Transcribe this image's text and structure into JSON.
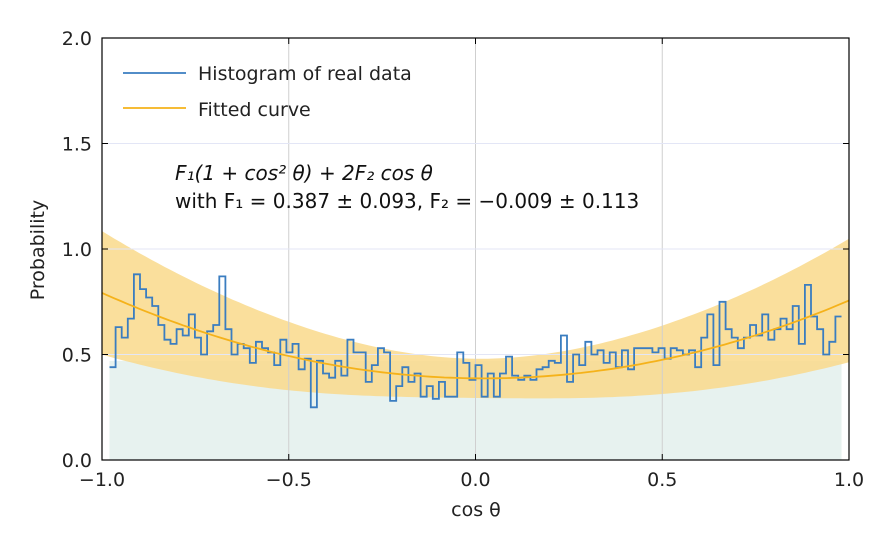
{
  "chart_data": {
    "type": "line",
    "title": "",
    "xlabel": "cos θ",
    "ylabel": "Probability",
    "xlim": [
      -1.0,
      1.0
    ],
    "ylim": [
      0.0,
      2.0
    ],
    "x_tick_labels": [
      "−1.0",
      "−0.5",
      "0.0",
      "0.5",
      "1.0"
    ],
    "y_tick_labels": [
      "0.0",
      "0.5",
      "1.0",
      "1.5",
      "2.0"
    ],
    "x_ticks": [
      -1.0,
      -0.5,
      0.0,
      0.5,
      1.0
    ],
    "y_ticks": [
      0.0,
      0.5,
      1.0,
      1.5,
      2.0
    ],
    "grid": true,
    "legend_position": "top-left",
    "colors": {
      "histogram": "#3a7dc0",
      "fit": "#f5b21a",
      "band": "#f9d98b",
      "mc_fill": "#e7f2ef",
      "grid_vertical": "#cfcfcf",
      "grid_horizontal": "#e3e6f6"
    },
    "annotation": {
      "line1": "F₁(1 + cos² θ) + 2F₂ cos θ",
      "line2": "with F₁ = 0.387 ± 0.093, F₂ = −0.009 ± 0.113"
    },
    "fit_params": {
      "F1": 0.387,
      "F1_err": 0.093,
      "F2": -0.009,
      "F2_err": 0.113
    },
    "series": [
      {
        "name": "Histogram of real data",
        "kind": "step",
        "bin_edges_range": [
          -0.98,
          0.98
        ],
        "values": [
          0.44,
          0.63,
          0.58,
          0.67,
          0.88,
          0.81,
          0.77,
          0.73,
          0.64,
          0.57,
          0.55,
          0.62,
          0.59,
          0.69,
          0.58,
          0.5,
          0.61,
          0.64,
          0.87,
          0.62,
          0.5,
          0.55,
          0.53,
          0.46,
          0.56,
          0.53,
          0.51,
          0.45,
          0.57,
          0.51,
          0.55,
          0.43,
          0.48,
          0.25,
          0.47,
          0.41,
          0.39,
          0.47,
          0.4,
          0.57,
          0.51,
          0.51,
          0.37,
          0.45,
          0.53,
          0.51,
          0.28,
          0.35,
          0.44,
          0.37,
          0.41,
          0.3,
          0.35,
          0.29,
          0.37,
          0.3,
          0.3,
          0.51,
          0.46,
          0.38,
          0.45,
          0.3,
          0.41,
          0.3,
          0.41,
          0.49,
          0.4,
          0.38,
          0.4,
          0.38,
          0.43,
          0.44,
          0.47,
          0.46,
          0.59,
          0.37,
          0.5,
          0.45,
          0.56,
          0.5,
          0.52,
          0.46,
          0.51,
          0.44,
          0.52,
          0.43,
          0.53,
          0.53,
          0.53,
          0.51,
          0.53,
          0.48,
          0.53,
          0.52,
          0.5,
          0.52,
          0.44,
          0.58,
          0.69,
          0.45,
          0.75,
          0.62,
          0.58,
          0.53,
          0.58,
          0.64,
          0.59,
          0.69,
          0.57,
          0.62,
          0.67,
          0.62,
          0.73,
          0.55,
          0.83,
          0.68,
          0.62,
          0.5,
          0.56,
          0.68
        ]
      },
      {
        "name": "Fitted curve",
        "kind": "curve",
        "formula": "F1*(1+x^2) + 2*F2*x"
      }
    ]
  }
}
